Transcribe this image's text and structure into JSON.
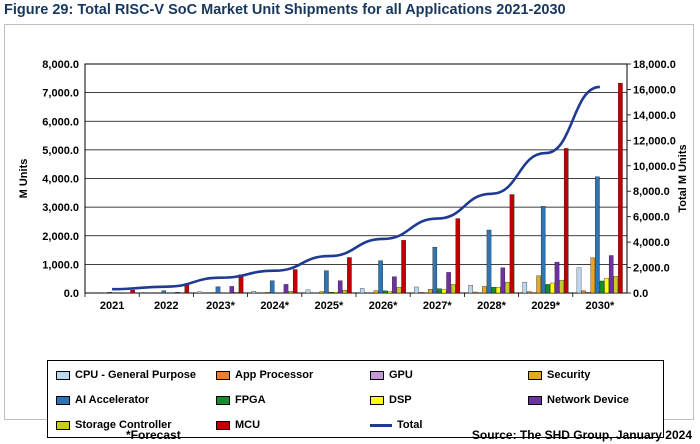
{
  "title": "Figure 29: Total RISC-V SoC Market Unit Shipments for all Applications 2021-2030",
  "footnote": "*Forecast",
  "source": "Source: The SHD Group, January 2024",
  "chart_data": {
    "type": "bar",
    "categories": [
      "2021",
      "2022",
      "2023*",
      "2024*",
      "2025*",
      "2026*",
      "2027*",
      "2028*",
      "2029*",
      "2030*"
    ],
    "ylabel": "M Units",
    "y2label": "Total M Units",
    "ylim": [
      0,
      8000
    ],
    "y2lim": [
      0,
      18000
    ],
    "yticks": [
      "0.0",
      "1,000.0",
      "2,000.0",
      "3,000.0",
      "4,000.0",
      "5,000.0",
      "6,000.0",
      "7,000.0",
      "8,000.0"
    ],
    "y2ticks": [
      "0.0",
      "2,000.0",
      "4,000.0",
      "6,000.0",
      "8,000.0",
      "10,000.0",
      "12,000.0",
      "14,000.0",
      "16,000.0",
      "18,000.0"
    ],
    "grid": true,
    "legend_position": "bottom",
    "series": [
      {
        "name": "CPU - General Purpose",
        "color": "#bdd7ee",
        "values": [
          10,
          20,
          40,
          60,
          110,
          160,
          210,
          270,
          380,
          880
        ]
      },
      {
        "name": "App Processor",
        "color": "#ed7d31",
        "values": [
          1,
          2,
          3,
          6,
          10,
          15,
          25,
          35,
          50,
          80
        ]
      },
      {
        "name": "GPU",
        "color": "#c39bd3",
        "values": [
          0,
          0,
          1,
          2,
          3,
          5,
          8,
          12,
          18,
          30
        ]
      },
      {
        "name": "Security",
        "color": "#e5a823",
        "values": [
          5,
          10,
          20,
          30,
          50,
          80,
          130,
          230,
          600,
          1230
        ]
      },
      {
        "name": "AI Accelerator",
        "color": "#2e75b6",
        "values": [
          30,
          80,
          220,
          430,
          780,
          1130,
          1600,
          2200,
          3030,
          4060
        ]
      },
      {
        "name": "FPGA",
        "color": "#178c2a",
        "values": [
          1,
          2,
          5,
          10,
          30,
          80,
          150,
          200,
          300,
          420
        ]
      },
      {
        "name": "DSP",
        "color": "#ffff00",
        "values": [
          1,
          2,
          5,
          10,
          30,
          60,
          120,
          200,
          350,
          520
        ]
      },
      {
        "name": "Network Device",
        "color": "#7030a0",
        "values": [
          10,
          30,
          230,
          300,
          430,
          570,
          720,
          880,
          1080,
          1310
        ]
      },
      {
        "name": "Storage Controller",
        "color": "#c9c928",
        "values": [
          5,
          10,
          30,
          60,
          100,
          200,
          300,
          380,
          450,
          580
        ]
      },
      {
        "name": "MCU",
        "color": "#c00000",
        "values": [
          100,
          330,
          640,
          820,
          1240,
          1840,
          2600,
          3440,
          5050,
          7330
        ]
      }
    ],
    "line_series": {
      "name": "Total",
      "color": "#1f3a93",
      "axis": "right",
      "values": [
        300,
        500,
        1200,
        1750,
        2900,
        4250,
        5850,
        7800,
        11000,
        16200
      ]
    }
  },
  "legend": [
    {
      "label": "CPU - General Purpose",
      "color": "#bdd7ee",
      "kind": "bar"
    },
    {
      "label": "App Processor",
      "color": "#ed7d31",
      "kind": "bar"
    },
    {
      "label": "GPU",
      "color": "#c39bd3",
      "kind": "bar"
    },
    {
      "label": "Security",
      "color": "#e5a823",
      "kind": "bar"
    },
    {
      "label": "AI Accelerator",
      "color": "#2e75b6",
      "kind": "bar"
    },
    {
      "label": "FPGA",
      "color": "#178c2a",
      "kind": "bar"
    },
    {
      "label": "DSP",
      "color": "#ffff00",
      "kind": "bar"
    },
    {
      "label": "Network Device",
      "color": "#7030a0",
      "kind": "bar"
    },
    {
      "label": "Storage Controller",
      "color": "#c9c928",
      "kind": "bar"
    },
    {
      "label": "MCU",
      "color": "#c00000",
      "kind": "bar"
    },
    {
      "label": "Total",
      "color": "#1f3a93",
      "kind": "line"
    }
  ]
}
